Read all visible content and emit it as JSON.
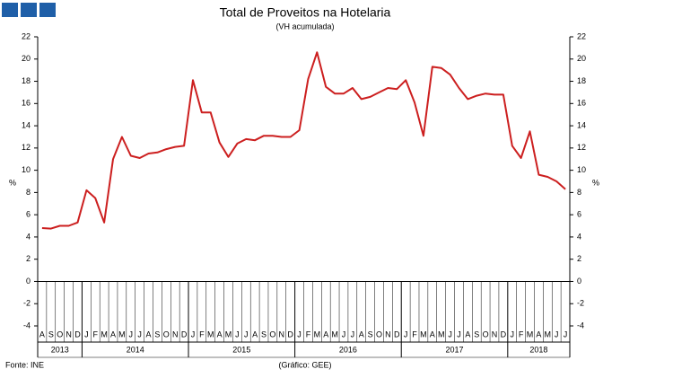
{
  "chart_data": {
    "type": "line",
    "title": "Total de Proveitos na Hotelaria",
    "subtitle": "(VH acumulada)",
    "y_label": "%",
    "source": "Fonte: INE",
    "credit": "(Gráfico: GEE)",
    "categories": [
      "A",
      "S",
      "O",
      "N",
      "D",
      "J",
      "F",
      "M",
      "A",
      "M",
      "J",
      "J",
      "A",
      "S",
      "O",
      "N",
      "D",
      "J",
      "F",
      "M",
      "A",
      "M",
      "J",
      "J",
      "A",
      "S",
      "O",
      "N",
      "D",
      "J",
      "F",
      "M",
      "A",
      "M",
      "J",
      "J",
      "A",
      "S",
      "O",
      "N",
      "D",
      "J",
      "F",
      "M",
      "A",
      "M",
      "J",
      "J",
      "A",
      "S",
      "O",
      "N",
      "D",
      "J",
      "F",
      "M",
      "A",
      "M",
      "J",
      "J"
    ],
    "years": [
      "2013",
      "2014",
      "2015",
      "2016",
      "2017",
      "2018"
    ],
    "series": [
      {
        "name": "Total de Proveitos",
        "color": "#cc1f1f",
        "values": [
          4.8,
          4.75,
          5.0,
          5.0,
          5.3,
          8.2,
          7.5,
          5.3,
          11.0,
          13.0,
          11.3,
          11.1,
          11.5,
          11.6,
          11.9,
          12.1,
          12.2,
          18.1,
          15.2,
          15.2,
          12.5,
          11.2,
          12.4,
          12.8,
          12.7,
          13.1,
          13.1,
          13.0,
          13.0,
          13.6,
          18.2,
          20.6,
          17.5,
          16.9,
          16.9,
          17.4,
          16.4,
          16.6,
          17.0,
          17.4,
          17.3,
          18.1,
          16.1,
          13.1,
          19.3,
          19.2,
          18.6,
          17.4,
          16.4,
          16.7,
          16.9,
          16.8,
          16.8,
          12.2,
          11.1,
          13.5,
          9.6,
          9.4,
          9.0,
          8.3
        ]
      }
    ],
    "ylim": [
      -4,
      22
    ],
    "yticks": [
      -4,
      -2,
      0,
      2,
      4,
      6,
      8,
      10,
      12,
      14,
      16,
      18,
      20,
      22
    ],
    "grid": false
  }
}
